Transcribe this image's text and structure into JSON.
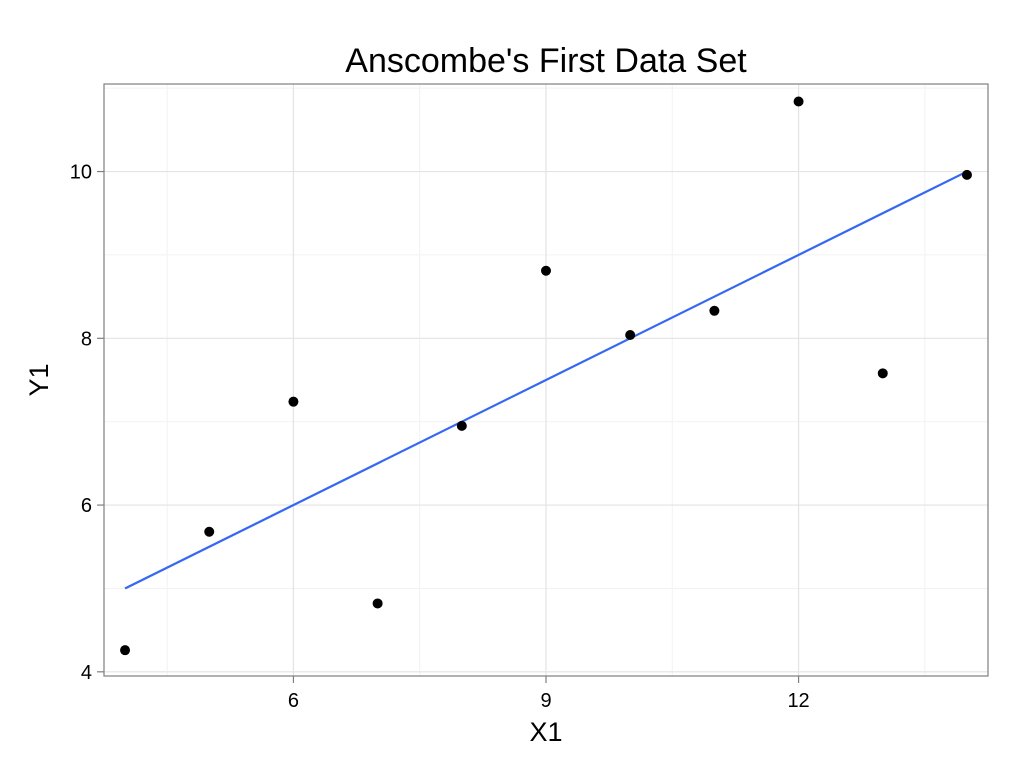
{
  "chart_data": {
    "type": "scatter",
    "title": "Anscombe's First Data Set",
    "xlabel": "X1",
    "ylabel": "Y1",
    "xlim": [
      3.75,
      14.25
    ],
    "ylim": [
      3.95,
      11.05
    ],
    "x_ticks": [
      6,
      9,
      12
    ],
    "y_ticks": [
      4,
      6,
      8,
      10
    ],
    "x_minor_ticks": [
      4.5,
      7.5,
      10.5,
      13.5
    ],
    "y_minor_ticks": [
      5,
      7,
      9,
      11
    ],
    "grid": true,
    "legend": "none",
    "series": [
      {
        "points": [
          {
            "x": 4,
            "y": 4.26
          },
          {
            "x": 5,
            "y": 5.68
          },
          {
            "x": 6,
            "y": 7.24
          },
          {
            "x": 7,
            "y": 4.82
          },
          {
            "x": 8,
            "y": 6.95
          },
          {
            "x": 9,
            "y": 8.81
          },
          {
            "x": 10,
            "y": 8.04
          },
          {
            "x": 11,
            "y": 8.33
          },
          {
            "x": 12,
            "y": 10.84
          },
          {
            "x": 13,
            "y": 7.58
          },
          {
            "x": 14,
            "y": 9.96
          }
        ],
        "color": "#000000"
      }
    ],
    "fit_line": {
      "x": [
        4,
        14
      ],
      "y": [
        5.0,
        10.0
      ],
      "color": "#3366FF"
    }
  }
}
